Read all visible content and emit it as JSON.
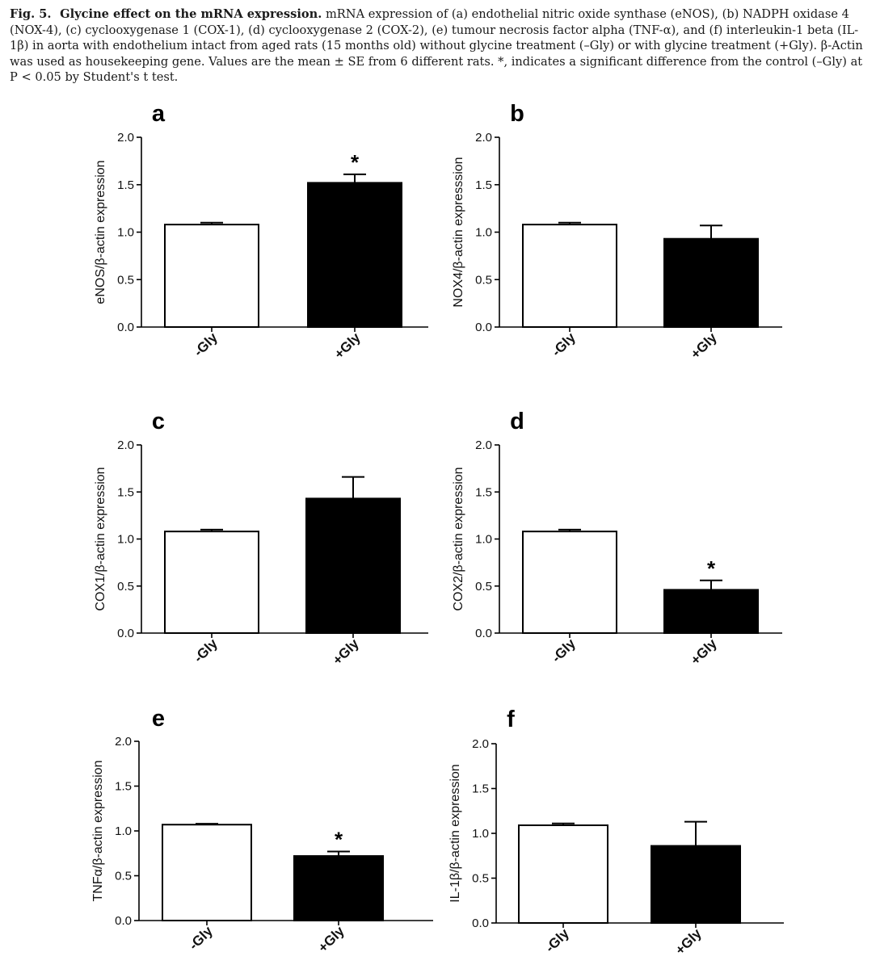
{
  "caption": {
    "label": "Fig. 5.",
    "title": "Glycine effect on the mRNA expression.",
    "text": "mRNA expression of (a) endothelial nitric oxide synthase (eNOS), (b) NADPH oxidase 4 (NOX-4), (c) cyclooxygenase 1 (COX-1), (d) cyclooxygenase 2 (COX-2), (e) tumour necrosis factor alpha (TNF-α), and (f) interleukin-1 beta (IL-1β) in aorta with endothelium intact from aged rats (15 months old) without glycine treatment (–Gly) or with glycine treatment (+Gly). β-Actin was used as housekeeping gene. Values are the mean ± SE from 6 different rats. *, indicates a significant difference from the control (–Gly) at P < 0.05 by Student's t test."
  },
  "colors": {
    "control_fill": "#ffffff",
    "treated_fill": "#000000",
    "axis": "#000000"
  },
  "chart_data": [
    {
      "panel": "a",
      "type": "bar",
      "title": "",
      "xlabel": "",
      "ylabel": "eNOS/β-actin expression",
      "categories": [
        "-Gly",
        "+Gly"
      ],
      "values": [
        1.08,
        1.52
      ],
      "errors": [
        0.02,
        0.09
      ],
      "significant": [
        false,
        true
      ],
      "significance_marker": "*",
      "ylim": [
        0,
        2.0
      ],
      "yticks": [
        "0.0",
        "0.5",
        "1.0",
        "1.5",
        "2.0"
      ]
    },
    {
      "panel": "b",
      "type": "bar",
      "title": "",
      "xlabel": "",
      "ylabel": "NOX4/β-actin expresssion",
      "categories": [
        "-Gly",
        "+Gly"
      ],
      "values": [
        1.08,
        0.93
      ],
      "errors": [
        0.02,
        0.14
      ],
      "significant": [
        false,
        false
      ],
      "significance_marker": "*",
      "ylim": [
        0,
        2.0
      ],
      "yticks": [
        "0.0",
        "0.5",
        "1.0",
        "1.5",
        "2.0"
      ]
    },
    {
      "panel": "c",
      "type": "bar",
      "title": "",
      "xlabel": "",
      "ylabel": "COX1/β-actin expression",
      "categories": [
        "-Gly",
        "+Gly"
      ],
      "values": [
        1.08,
        1.43
      ],
      "errors": [
        0.02,
        0.23
      ],
      "significant": [
        false,
        false
      ],
      "significance_marker": "*",
      "ylim": [
        0,
        2.0
      ],
      "yticks": [
        "0.0",
        "0.5",
        "1.0",
        "1.5",
        "2.0"
      ]
    },
    {
      "panel": "d",
      "type": "bar",
      "title": "",
      "xlabel": "",
      "ylabel": "COX2/β-actin expression",
      "categories": [
        "-Gly",
        "+Gly"
      ],
      "values": [
        1.08,
        0.46
      ],
      "errors": [
        0.02,
        0.1
      ],
      "significant": [
        false,
        true
      ],
      "significance_marker": "*",
      "ylim": [
        0,
        2.0
      ],
      "yticks": [
        "0.0",
        "0.5",
        "1.0",
        "1.5",
        "2.0"
      ]
    },
    {
      "panel": "e",
      "type": "bar",
      "title": "",
      "xlabel": "",
      "ylabel": "TNFα/β-actin expression",
      "categories": [
        "-Gly",
        "+Gly"
      ],
      "values": [
        1.07,
        0.72
      ],
      "errors": [
        0.01,
        0.05
      ],
      "significant": [
        false,
        true
      ],
      "significance_marker": "*",
      "ylim": [
        0,
        2.0
      ],
      "yticks": [
        "0.0",
        "0.5",
        "1.0",
        "1.5",
        "2.0"
      ]
    },
    {
      "panel": "f",
      "type": "bar",
      "title": "",
      "xlabel": "",
      "ylabel": "IL-1β/β-actin expression",
      "categories": [
        "-Gly",
        "+Gly"
      ],
      "values": [
        1.09,
        0.86
      ],
      "errors": [
        0.02,
        0.27
      ],
      "significant": [
        false,
        false
      ],
      "significance_marker": "*",
      "ylim": [
        0,
        2.0
      ],
      "yticks": [
        "0.0",
        "0.5",
        "1.0",
        "1.5",
        "2.0"
      ]
    }
  ]
}
